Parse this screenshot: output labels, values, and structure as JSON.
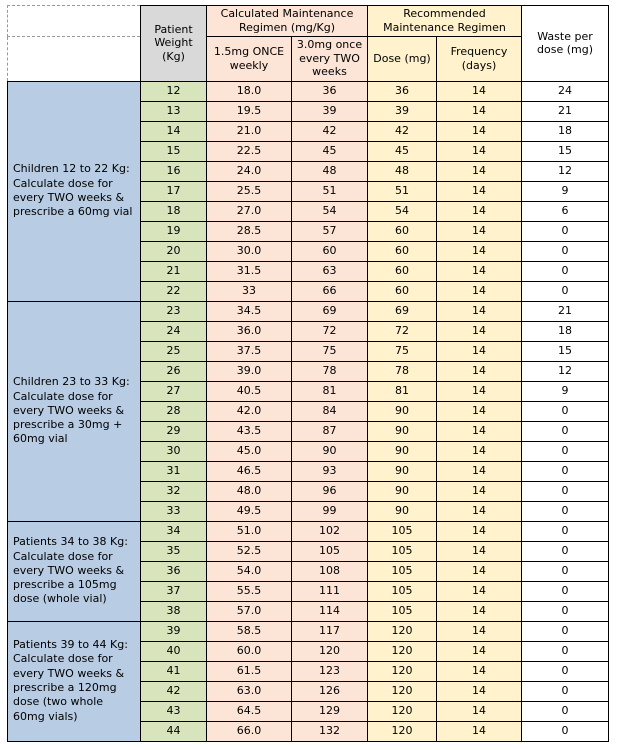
{
  "colors": {
    "group_bg": "#b8cce4",
    "weight_bg": "#d8e4bc",
    "calc_bg": "#fce4d6",
    "rec_bg": "#fff2cc",
    "waste_bg": "#ffffff",
    "weight_header_bg": "#d9d9d9",
    "border": "#000000"
  },
  "header": {
    "patient_weight": "Patient Weight (Kg)",
    "calculated_group": "Calculated Maintenance Regimen (mg/Kg)",
    "recommended_group": "Recommended Maintenance Regimen",
    "sub_15": "1.5mg ONCE weekly",
    "sub_30": "3.0mg once every TWO weeks",
    "sub_dose": "Dose (mg)",
    "sub_frequency": "Frequency (days)",
    "waste": "Waste per dose (mg)"
  },
  "table": {
    "columns": [
      "weight",
      "calc_1_5",
      "calc_3_0",
      "dose",
      "frequency",
      "waste"
    ],
    "groups": [
      {
        "label": "Children 12 to 22 Kg: Calculate dose for every TWO weeks & prescribe a 60mg vial",
        "rows": [
          {
            "weight": "12",
            "calc_1_5": "18.0",
            "calc_3_0": "36",
            "dose": "36",
            "frequency": "14",
            "waste": "24"
          },
          {
            "weight": "13",
            "calc_1_5": "19.5",
            "calc_3_0": "39",
            "dose": "39",
            "frequency": "14",
            "waste": "21"
          },
          {
            "weight": "14",
            "calc_1_5": "21.0",
            "calc_3_0": "42",
            "dose": "42",
            "frequency": "14",
            "waste": "18"
          },
          {
            "weight": "15",
            "calc_1_5": "22.5",
            "calc_3_0": "45",
            "dose": "45",
            "frequency": "14",
            "waste": "15"
          },
          {
            "weight": "16",
            "calc_1_5": "24.0",
            "calc_3_0": "48",
            "dose": "48",
            "frequency": "14",
            "waste": "12"
          },
          {
            "weight": "17",
            "calc_1_5": "25.5",
            "calc_3_0": "51",
            "dose": "51",
            "frequency": "14",
            "waste": "9"
          },
          {
            "weight": "18",
            "calc_1_5": "27.0",
            "calc_3_0": "54",
            "dose": "54",
            "frequency": "14",
            "waste": "6"
          },
          {
            "weight": "19",
            "calc_1_5": "28.5",
            "calc_3_0": "57",
            "dose": "60",
            "frequency": "14",
            "waste": "0"
          },
          {
            "weight": "20",
            "calc_1_5": "30.0",
            "calc_3_0": "60",
            "dose": "60",
            "frequency": "14",
            "waste": "0"
          },
          {
            "weight": "21",
            "calc_1_5": "31.5",
            "calc_3_0": "63",
            "dose": "60",
            "frequency": "14",
            "waste": "0"
          },
          {
            "weight": "22",
            "calc_1_5": "33",
            "calc_3_0": "66",
            "dose": "60",
            "frequency": "14",
            "waste": "0"
          }
        ]
      },
      {
        "label": "Children 23 to 33 Kg: Calculate dose for every TWO weeks & prescribe a 30mg + 60mg vial",
        "rows": [
          {
            "weight": "23",
            "calc_1_5": "34.5",
            "calc_3_0": "69",
            "dose": "69",
            "frequency": "14",
            "waste": "21"
          },
          {
            "weight": "24",
            "calc_1_5": "36.0",
            "calc_3_0": "72",
            "dose": "72",
            "frequency": "14",
            "waste": "18"
          },
          {
            "weight": "25",
            "calc_1_5": "37.5",
            "calc_3_0": "75",
            "dose": "75",
            "frequency": "14",
            "waste": "15"
          },
          {
            "weight": "26",
            "calc_1_5": "39.0",
            "calc_3_0": "78",
            "dose": "78",
            "frequency": "14",
            "waste": "12"
          },
          {
            "weight": "27",
            "calc_1_5": "40.5",
            "calc_3_0": "81",
            "dose": "81",
            "frequency": "14",
            "waste": "9"
          },
          {
            "weight": "28",
            "calc_1_5": "42.0",
            "calc_3_0": "84",
            "dose": "90",
            "frequency": "14",
            "waste": "0"
          },
          {
            "weight": "29",
            "calc_1_5": "43.5",
            "calc_3_0": "87",
            "dose": "90",
            "frequency": "14",
            "waste": "0"
          },
          {
            "weight": "30",
            "calc_1_5": "45.0",
            "calc_3_0": "90",
            "dose": "90",
            "frequency": "14",
            "waste": "0"
          },
          {
            "weight": "31",
            "calc_1_5": "46.5",
            "calc_3_0": "93",
            "dose": "90",
            "frequency": "14",
            "waste": "0"
          },
          {
            "weight": "32",
            "calc_1_5": "48.0",
            "calc_3_0": "96",
            "dose": "90",
            "frequency": "14",
            "waste": "0"
          },
          {
            "weight": "33",
            "calc_1_5": "49.5",
            "calc_3_0": "99",
            "dose": "90",
            "frequency": "14",
            "waste": "0"
          }
        ]
      },
      {
        "label": "Patients 34 to 38 Kg: Calculate dose for every TWO weeks & prescribe a 105mg dose (whole vial)",
        "rows": [
          {
            "weight": "34",
            "calc_1_5": "51.0",
            "calc_3_0": "102",
            "dose": "105",
            "frequency": "14",
            "waste": "0"
          },
          {
            "weight": "35",
            "calc_1_5": "52.5",
            "calc_3_0": "105",
            "dose": "105",
            "frequency": "14",
            "waste": "0"
          },
          {
            "weight": "36",
            "calc_1_5": "54.0",
            "calc_3_0": "108",
            "dose": "105",
            "frequency": "14",
            "waste": "0"
          },
          {
            "weight": "37",
            "calc_1_5": "55.5",
            "calc_3_0": "111",
            "dose": "105",
            "frequency": "14",
            "waste": "0"
          },
          {
            "weight": "38",
            "calc_1_5": "57.0",
            "calc_3_0": "114",
            "dose": "105",
            "frequency": "14",
            "waste": "0"
          }
        ]
      },
      {
        "label": "Patients 39 to 44 Kg: Calculate dose for every TWO weeks & prescribe a 120mg dose (two whole 60mg vials)",
        "rows": [
          {
            "weight": "39",
            "calc_1_5": "58.5",
            "calc_3_0": "117",
            "dose": "120",
            "frequency": "14",
            "waste": "0"
          },
          {
            "weight": "40",
            "calc_1_5": "60.0",
            "calc_3_0": "120",
            "dose": "120",
            "frequency": "14",
            "waste": "0"
          },
          {
            "weight": "41",
            "calc_1_5": "61.5",
            "calc_3_0": "123",
            "dose": "120",
            "frequency": "14",
            "waste": "0"
          },
          {
            "weight": "42",
            "calc_1_5": "63.0",
            "calc_3_0": "126",
            "dose": "120",
            "frequency": "14",
            "waste": "0"
          },
          {
            "weight": "43",
            "calc_1_5": "64.5",
            "calc_3_0": "129",
            "dose": "120",
            "frequency": "14",
            "waste": "0"
          },
          {
            "weight": "44",
            "calc_1_5": "66.0",
            "calc_3_0": "132",
            "dose": "120",
            "frequency": "14",
            "waste": "0"
          }
        ]
      }
    ]
  }
}
